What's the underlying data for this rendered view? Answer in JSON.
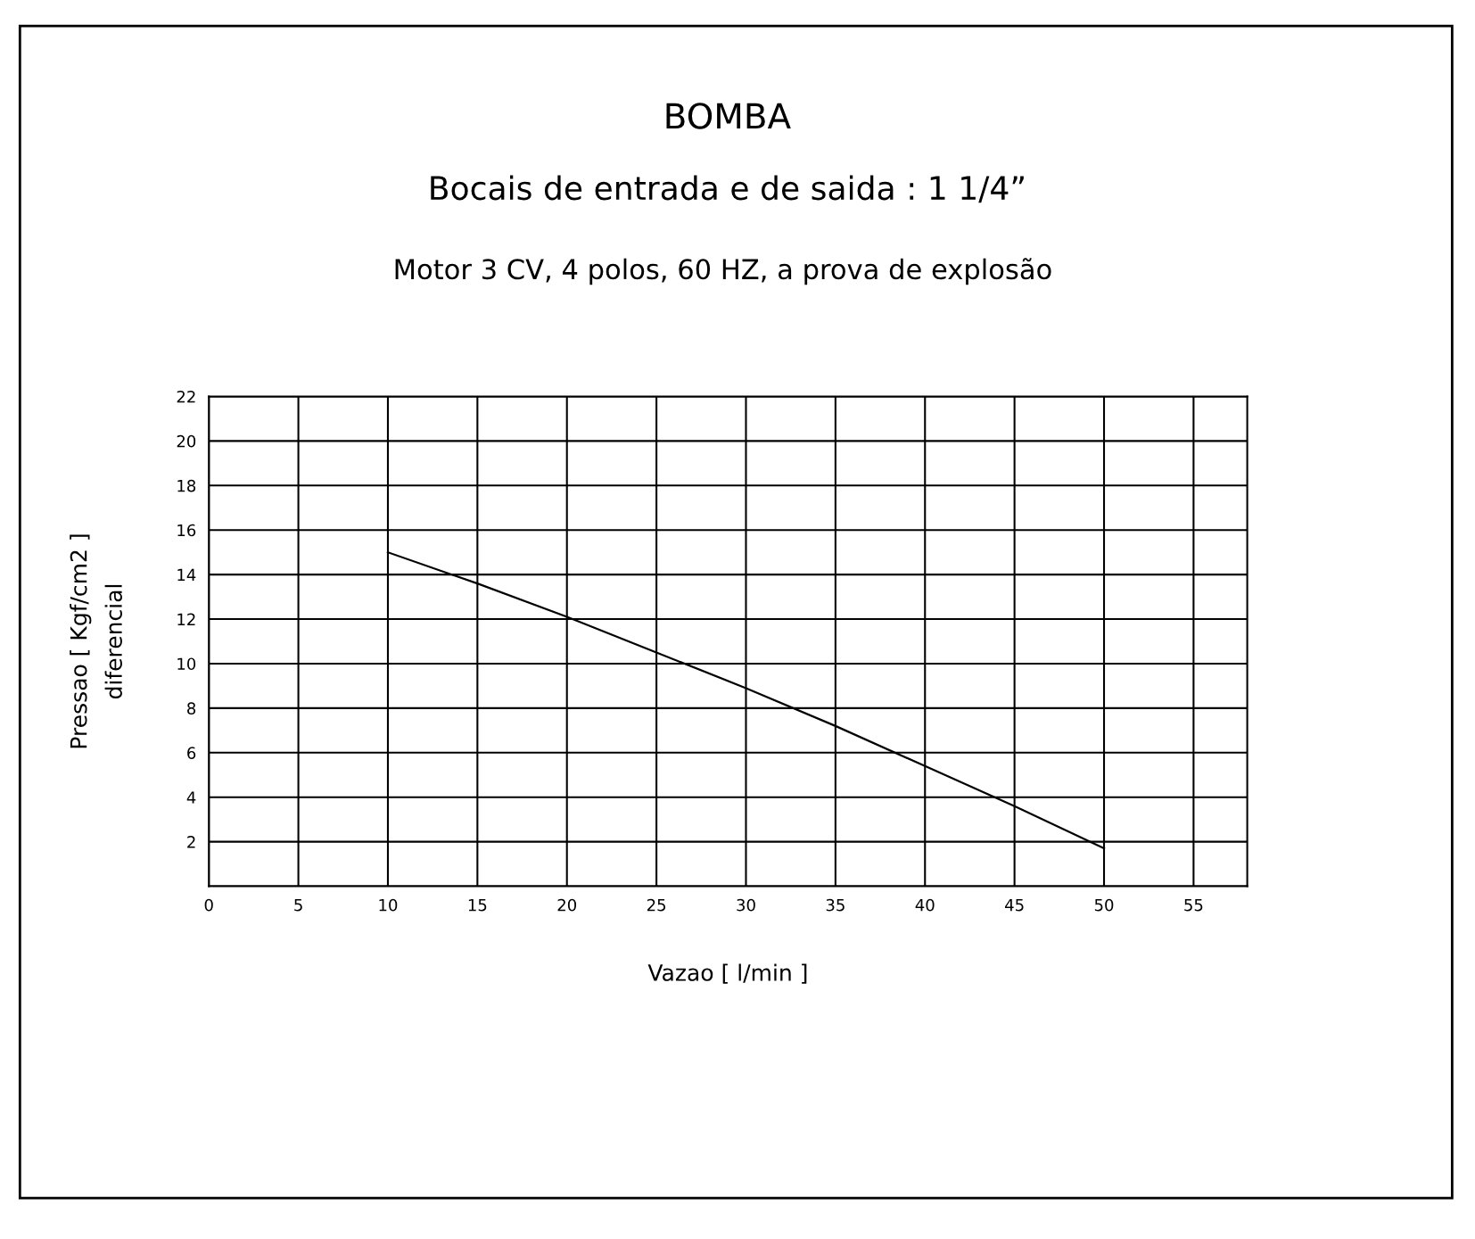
{
  "chart_data": {
    "type": "line",
    "title": "BOMBA",
    "subtitle": "Bocais de entrada e de saida : 1 1/4”",
    "annotations": [
      "Motor 3 CV, 4 polos, 60 HZ, a prova de explosão"
    ],
    "xlabel": "Vazao [ l/min ]",
    "ylabel": "Pressao [ Kgf/cm2 ]\ndiferencial",
    "x": [
      10,
      15,
      20,
      25,
      30,
      35,
      40,
      45,
      50
    ],
    "series": [
      {
        "color": "#000000",
        "values": [
          15,
          13.6,
          12.1,
          10.5,
          8.9,
          7.2,
          5.4,
          3.6,
          1.7
        ]
      }
    ],
    "xlim": [
      0,
      58
    ],
    "xticks": [
      0,
      5,
      10,
      15,
      20,
      25,
      30,
      35,
      40,
      45,
      50,
      55
    ],
    "ylim": [
      0,
      22
    ],
    "yticks": [
      {
        "value": 0,
        "label": null
      },
      2,
      4,
      6,
      8,
      10,
      12,
      14,
      16,
      18,
      20,
      22
    ],
    "grid": true,
    "line_style": "solid",
    "marker": "none"
  }
}
